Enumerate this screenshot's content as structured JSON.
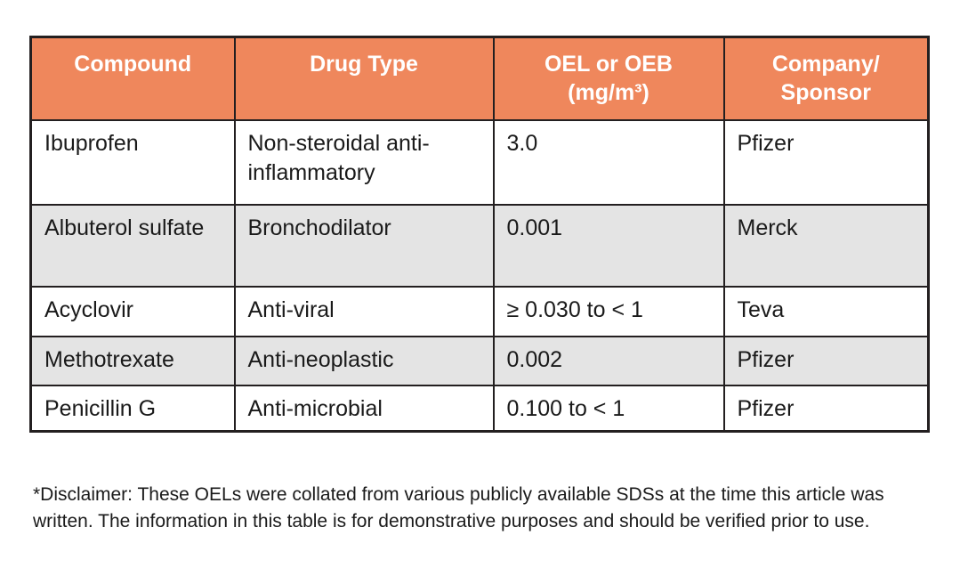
{
  "colors": {
    "header_bg": "#ef875c",
    "header_text": "#ffffff",
    "row_alt_bg": "#e4e4e4",
    "border": "#231f20",
    "body_text": "#1a1a1a",
    "page_bg": "#ffffff"
  },
  "table": {
    "headers": [
      {
        "line1": "Compound"
      },
      {
        "line1": "Drug Type"
      },
      {
        "line1": "OEL or OEB",
        "line2": "(mg/m³)"
      },
      {
        "line1": "Company/",
        "line2": "Sponsor"
      }
    ],
    "rows": [
      {
        "compound": "Ibuprofen",
        "drug_type": "Non-steroidal anti-inflammatory",
        "oel": "3.0",
        "company": "Pfizer"
      },
      {
        "compound": "Albuterol sulfate",
        "drug_type": "Bronchodilator",
        "oel": "0.001",
        "company": "Merck"
      },
      {
        "compound": "Acyclovir",
        "drug_type": "Anti-viral",
        "oel": "≥ 0.030 to < 1",
        "company": "Teva"
      },
      {
        "compound": "Methotrexate",
        "drug_type": "Anti-neoplastic",
        "oel": "0.002",
        "company": "Pfizer"
      },
      {
        "compound": "Penicillin G",
        "drug_type": "Anti-microbial",
        "oel": "0.100 to < 1",
        "company": "Pfizer"
      }
    ]
  },
  "disclaimer": "*Disclaimer: These OELs were collated from various publicly available SDSs at the time this article was written. The information in this table is for demonstrative purposes and should be verified prior to use.",
  "chart_data": {
    "type": "table",
    "title": "",
    "columns": [
      "Compound",
      "Drug Type",
      "OEL or OEB (mg/m³)",
      "Company/Sponsor"
    ],
    "rows": [
      [
        "Ibuprofen",
        "Non-steroidal anti-inflammatory",
        "3.0",
        "Pfizer"
      ],
      [
        "Albuterol sulfate",
        "Bronchodilator",
        "0.001",
        "Merck"
      ],
      [
        "Acyclovir",
        "Anti-viral",
        "≥ 0.030 to < 1",
        "Teva"
      ],
      [
        "Methotrexate",
        "Anti-neoplastic",
        "0.002",
        "Pfizer"
      ],
      [
        "Penicillin G",
        "Anti-microbial",
        "0.100 to < 1",
        "Pfizer"
      ]
    ],
    "notes": "Alternating rows shaded grey (rows 2 and 4); orange header row with white bold text; black cell borders."
  }
}
